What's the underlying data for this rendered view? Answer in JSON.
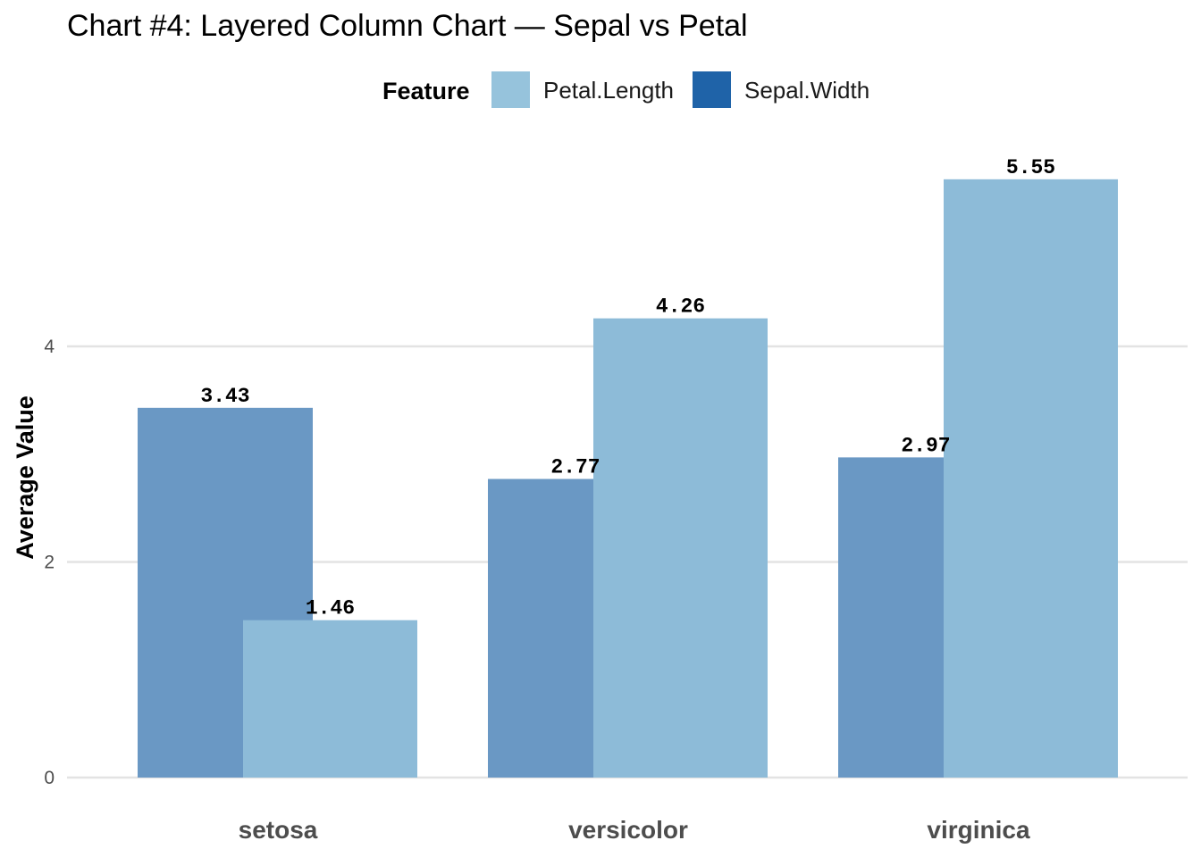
{
  "chart_data": {
    "type": "bar",
    "title": "Chart #4: Layered Column Chart — Sepal vs Petal",
    "xlabel": "",
    "ylabel": "Average Value",
    "ylim": [
      0,
      5.8
    ],
    "y_ticks": [
      0,
      2,
      4
    ],
    "grid": "horizontal",
    "legend": {
      "title": "Feature",
      "position": "top"
    },
    "categories": [
      "setosa",
      "versicolor",
      "virginica"
    ],
    "series": [
      {
        "name": "Petal.Length",
        "color": "#8dbbd8",
        "values": [
          1.46,
          4.26,
          5.55
        ],
        "labels": [
          "1.46",
          "4.26",
          "5.55"
        ]
      },
      {
        "name": "Sepal.Width",
        "color": "#6a98c4",
        "values": [
          3.43,
          2.77,
          2.97
        ],
        "labels": [
          "3.43",
          "2.77",
          "2.97"
        ]
      }
    ],
    "legend_colors": {
      "Petal.Length": "#96c3dc",
      "Sepal.Width": "#1f63a8"
    }
  }
}
